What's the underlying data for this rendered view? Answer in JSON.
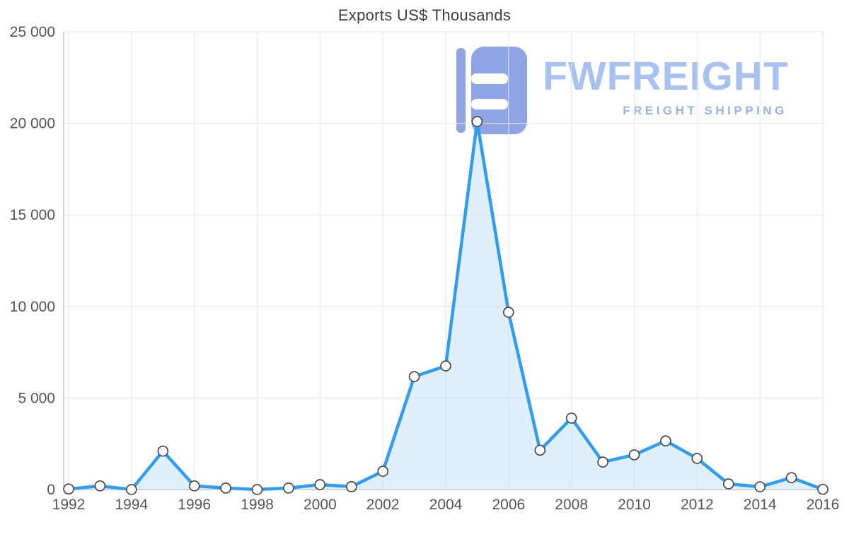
{
  "watermark": {
    "brand": "FWFREIGHT",
    "tagline": "FREIGHT SHIPPING",
    "icon_color": "#8ea4e4"
  },
  "chart_data": {
    "type": "area",
    "title": "Exports US$ Thousands",
    "xlabel": "",
    "ylabel": "",
    "x": [
      1992,
      1993,
      1994,
      1995,
      1996,
      1997,
      1998,
      1999,
      2000,
      2001,
      2002,
      2003,
      2004,
      2005,
      2006,
      2007,
      2008,
      2009,
      2010,
      2011,
      2012,
      2013,
      2014,
      2015,
      2016
    ],
    "values": [
      30,
      200,
      0,
      2100,
      200,
      80,
      0,
      80,
      270,
      160,
      1000,
      6170,
      6750,
      20100,
      9680,
      2150,
      3900,
      1500,
      1900,
      2660,
      1700,
      310,
      150,
      650,
      10
    ],
    "ylim": [
      0,
      25000
    ],
    "y_ticks": [
      0,
      5000,
      10000,
      15000,
      20000,
      25000
    ],
    "y_tick_labels": [
      "0",
      "5 000",
      "10 000",
      "15 000",
      "20 000",
      "25 000"
    ],
    "x_ticks": [
      1992,
      1994,
      1996,
      1998,
      2000,
      2002,
      2004,
      2006,
      2008,
      2010,
      2012,
      2014,
      2016
    ],
    "x_tick_labels": [
      "1992",
      "1994",
      "1996",
      "1998",
      "2000",
      "2002",
      "2004",
      "2006",
      "2008",
      "2010",
      "2012",
      "2014",
      "2016"
    ],
    "grid": true,
    "legend": "none",
    "grid_color": "#e6e6e6",
    "axis_color": "#c8c8c8",
    "line_color": "#2e9df3",
    "fill_color": "#b9dcf8",
    "fill_opacity": 0.45,
    "marker_fill": "#ffffff",
    "marker_stroke": "#4a4a4a"
  }
}
